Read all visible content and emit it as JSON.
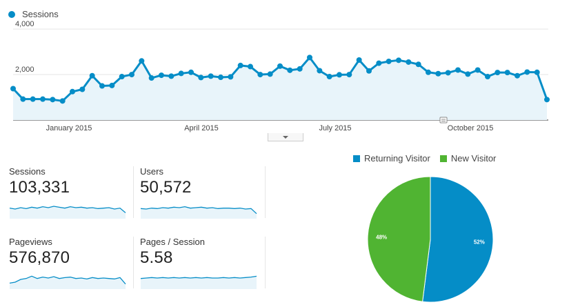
{
  "timeline": {
    "legend_label": "Sessions",
    "colors": {
      "line": "#058dc7",
      "fill": "#e8f4fa",
      "grid": "#e5e5e5"
    },
    "chart_data": {
      "type": "line",
      "series": [
        {
          "name": "Sessions",
          "values": [
            1380,
            920,
            920,
            920,
            900,
            840,
            1250,
            1350,
            1950,
            1500,
            1520,
            1910,
            2000,
            2600,
            1850,
            1970,
            1930,
            2050,
            2100,
            1870,
            1930,
            1880,
            1900,
            2400,
            2350,
            2000,
            2020,
            2370,
            2190,
            2250,
            2750,
            2170,
            1910,
            1990,
            2000,
            2640,
            2160,
            2500,
            2580,
            2630,
            2550,
            2450,
            2100,
            2040,
            2080,
            2200,
            2020,
            2200,
            1910,
            2090,
            2090,
            1950,
            2110,
            2100,
            900
          ]
        }
      ],
      "ylim": [
        0,
        4000
      ],
      "y_ticks": [
        "2,000",
        "4,000"
      ],
      "x_tick_labels": [
        "January 2015",
        "April 2015",
        "July 2015",
        "October 2015"
      ],
      "grid": true
    }
  },
  "metrics": [
    {
      "label": "Sessions",
      "value": "103,331",
      "spark": [
        50,
        48,
        51,
        49,
        52,
        50,
        53,
        51,
        54,
        52,
        50,
        53,
        51,
        52,
        50,
        51,
        49,
        50,
        51,
        48,
        50,
        40
      ]
    },
    {
      "label": "Users",
      "value": "50,572",
      "spark": [
        49,
        48,
        50,
        49,
        51,
        50,
        52,
        51,
        53,
        50,
        51,
        52,
        50,
        51,
        49,
        50,
        50,
        49,
        50,
        48,
        49,
        38
      ]
    },
    {
      "label": "Pageviews",
      "value": "576,870",
      "spark": [
        40,
        42,
        48,
        50,
        55,
        50,
        53,
        51,
        54,
        50,
        52,
        53,
        50,
        51,
        49,
        52,
        50,
        51,
        50,
        49,
        52,
        38
      ]
    },
    {
      "label": "Pages / Session",
      "value": "5.58",
      "spark": [
        50,
        51,
        52,
        51,
        52,
        51,
        52,
        51,
        52,
        51,
        52,
        51,
        52,
        51,
        51,
        52,
        51,
        52,
        51,
        52,
        53,
        55
      ]
    }
  ],
  "pie": {
    "legend": [
      {
        "label": "Returning Visitor",
        "color": "#058dc7"
      },
      {
        "label": "New Visitor",
        "color": "#50b432"
      }
    ],
    "chart_data": {
      "type": "pie",
      "slices": [
        {
          "name": "Returning Visitor",
          "value": 52,
          "label": "52%",
          "color": "#058dc7"
        },
        {
          "name": "New Visitor",
          "value": 48,
          "label": "48%",
          "color": "#50b432"
        }
      ]
    }
  }
}
